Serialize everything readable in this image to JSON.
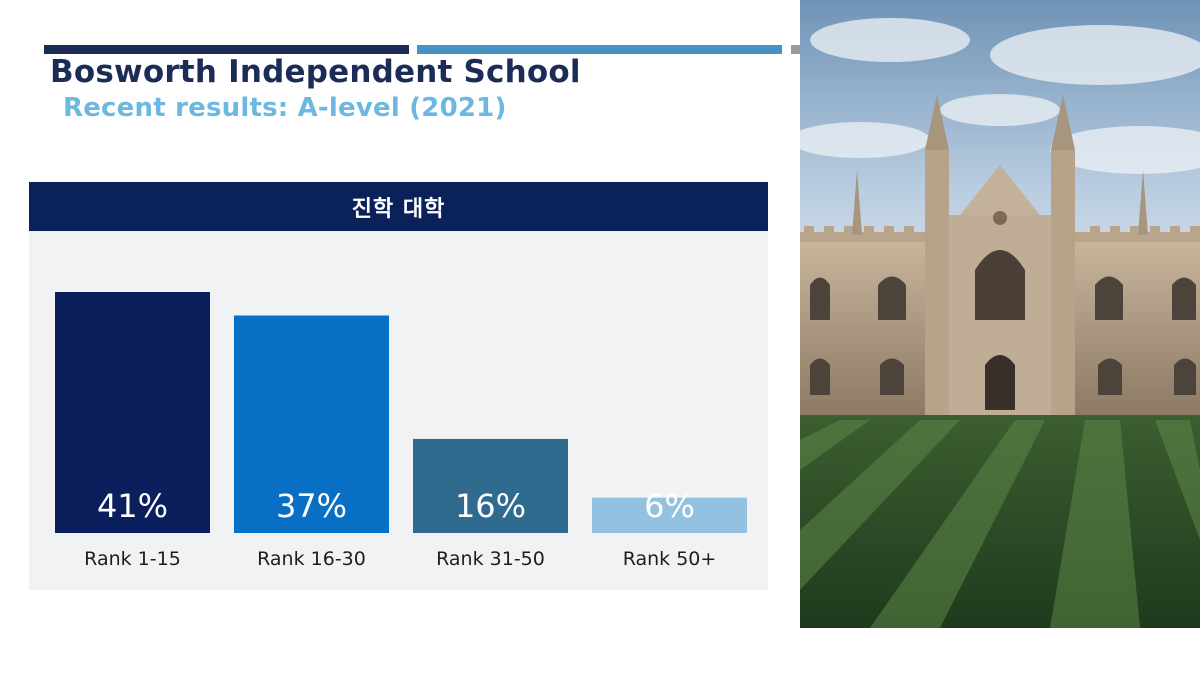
{
  "header": {
    "title": "Bosworth Independent School",
    "subtitle": "Recent results: A-level (2021)"
  },
  "colors": {
    "title": "#1b2d57",
    "subtitle": "#6cb8e1",
    "accent_dark": "#1b2d57",
    "accent_mid": "#4592c4",
    "accent_grey": "#9a9a9a",
    "panel_header": "#0b215a"
  },
  "chart_data": {
    "type": "bar",
    "title": "진학 대학",
    "categories": [
      "Rank 1-15",
      "Rank 16-30",
      "Rank 31-50",
      "Rank 50+"
    ],
    "values": [
      41,
      37,
      16,
      6
    ],
    "data_labels": [
      "41%",
      "37%",
      "16%",
      "6%"
    ],
    "bar_colors": [
      "#0b1f5c",
      "#0770c4",
      "#2f6a8f",
      "#93c1e0"
    ],
    "ylim": [
      0,
      41
    ],
    "grid": false,
    "legend": "none"
  },
  "photo": {
    "icon": "university-building-photo"
  }
}
